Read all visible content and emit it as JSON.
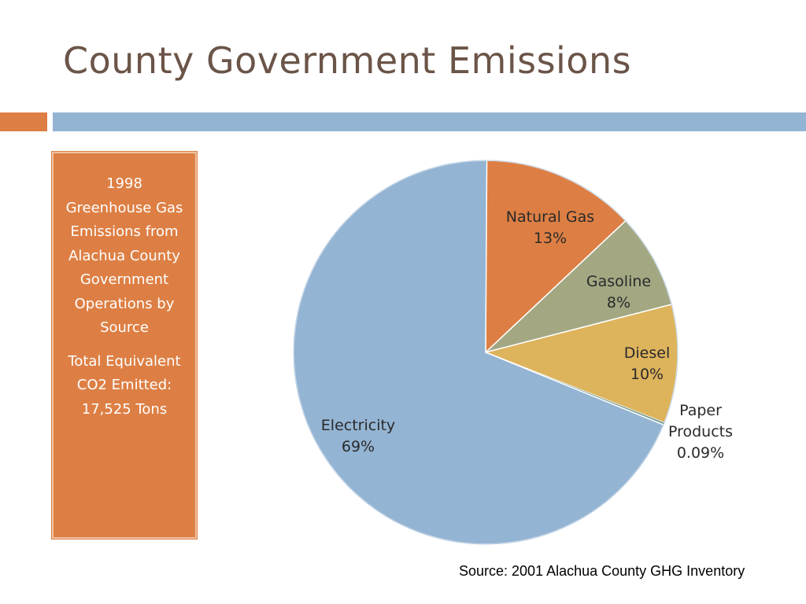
{
  "slide": {
    "title": "County Government Emissions",
    "source": "Source: 2001 Alachua County GHG Inventory"
  },
  "sidebar": {
    "description": "1998 Greenhouse Gas Emissions from Alachua County Government Operations by Source",
    "total": "Total Equivalent CO2 Emitted: 17,525 Tons"
  },
  "colors": {
    "accent_orange": "#dd7f44",
    "accent_blue": "#94b4d3",
    "title_brown": "#6b5448"
  },
  "chart_data": {
    "type": "pie",
    "slices": [
      {
        "label": "Natural Gas",
        "value": 13,
        "display": "13%",
        "color": "#dd7f44"
      },
      {
        "label": "Gasoline",
        "value": 8,
        "display": "8%",
        "color": "#a3a883"
      },
      {
        "label": "Diesel",
        "value": 10,
        "display": "10%",
        "color": "#ddb35c"
      },
      {
        "label": "Paper Products",
        "value": 0.09,
        "display": "0.09%",
        "color": "#7fa39a"
      },
      {
        "label": "Electricity",
        "value": 69,
        "display": "69%",
        "color": "#94b4d3"
      }
    ]
  }
}
